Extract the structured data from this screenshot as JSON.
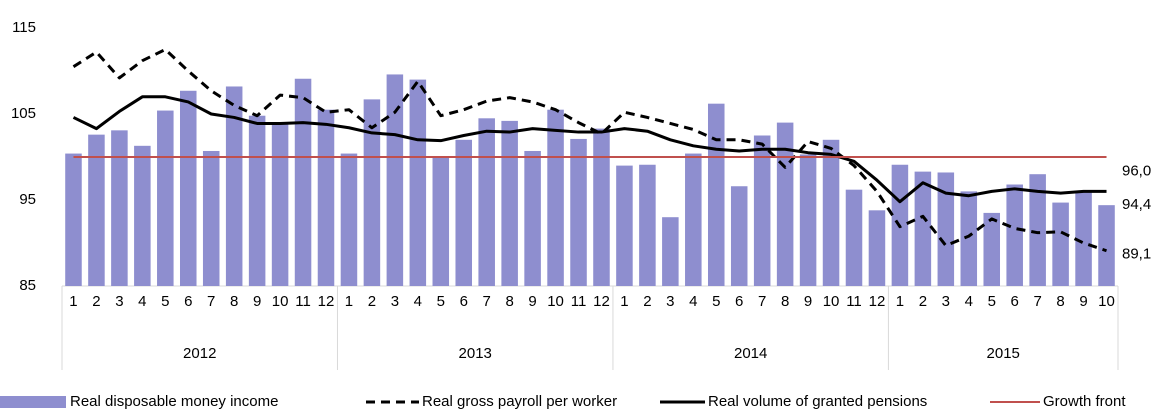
{
  "chart_data": {
    "type": "bar_line",
    "categories": [
      "1",
      "2",
      "3",
      "4",
      "5",
      "6",
      "7",
      "8",
      "9",
      "10",
      "11",
      "12",
      "1",
      "2",
      "3",
      "4",
      "5",
      "6",
      "7",
      "8",
      "9",
      "10",
      "11",
      "12",
      "1",
      "2",
      "3",
      "4",
      "5",
      "6",
      "7",
      "8",
      "9",
      "10",
      "11",
      "12",
      "1",
      "2",
      "3",
      "4",
      "5",
      "6",
      "7",
      "8",
      "9",
      "10"
    ],
    "groups": [
      {
        "label": "2012",
        "size": 12
      },
      {
        "label": "2013",
        "size": 12
      },
      {
        "label": "2014",
        "size": 12
      },
      {
        "label": "2015",
        "size": 10
      }
    ],
    "ylim": [
      85,
      115
    ],
    "yticks": [
      85,
      95,
      105,
      115
    ],
    "grid": false,
    "series": [
      {
        "name": "Real disposable money income",
        "kind": "bar",
        "color": "#8e8ecf",
        "values": [
          100.4,
          102.6,
          103.1,
          101.3,
          105.4,
          107.7,
          100.7,
          108.2,
          104.8,
          104.0,
          109.1,
          105.5,
          100.4,
          106.7,
          109.6,
          109.0,
          100.0,
          102.0,
          104.5,
          104.2,
          100.7,
          105.5,
          102.1,
          103.3,
          99.0,
          99.1,
          93.0,
          100.4,
          106.2,
          96.6,
          102.5,
          104.0,
          100.3,
          102.0,
          96.2,
          93.8,
          99.1,
          98.3,
          98.2,
          96.0,
          93.5,
          96.8,
          98.0,
          94.7,
          96.0,
          94.4
        ],
        "end_label": "94,4"
      },
      {
        "name": "Real gross payroll per worker",
        "kind": "line",
        "dash": true,
        "color": "#000000",
        "values": [
          110.5,
          112.2,
          109.2,
          111.2,
          112.5,
          110.0,
          107.7,
          106.0,
          104.8,
          107.2,
          106.9,
          105.2,
          105.5,
          103.4,
          105.2,
          108.8,
          104.8,
          105.5,
          106.5,
          106.9,
          106.4,
          105.5,
          104.0,
          102.7,
          105.2,
          104.6,
          103.9,
          103.2,
          102.0,
          102.0,
          101.5,
          98.8,
          101.8,
          101.0,
          99.0,
          96.0,
          91.9,
          93.1,
          89.7,
          90.8,
          92.8,
          91.7,
          91.2,
          91.3,
          90.0,
          89.1
        ],
        "end_label": "89,1"
      },
      {
        "name": "Real volume of granted pensions",
        "kind": "line",
        "dash": false,
        "color": "#000000",
        "values": [
          104.6,
          103.3,
          105.3,
          107.0,
          107.0,
          106.4,
          105.0,
          104.6,
          103.9,
          103.9,
          104.0,
          103.8,
          103.4,
          102.8,
          102.6,
          102.0,
          101.9,
          102.5,
          103.0,
          102.9,
          103.3,
          103.1,
          102.9,
          102.9,
          103.3,
          103.0,
          102.0,
          101.3,
          100.9,
          100.7,
          100.9,
          100.9,
          100.5,
          100.3,
          99.5,
          97.3,
          94.8,
          97.0,
          95.8,
          95.5,
          96.0,
          96.3,
          96.0,
          95.8,
          96.0,
          96.0
        ],
        "end_label": "96,0"
      },
      {
        "name": "Growth front",
        "kind": "line",
        "dash": false,
        "color": "#c0504d",
        "values": [
          100,
          100,
          100,
          100,
          100,
          100,
          100,
          100,
          100,
          100,
          100,
          100,
          100,
          100,
          100,
          100,
          100,
          100,
          100,
          100,
          100,
          100,
          100,
          100,
          100,
          100,
          100,
          100,
          100,
          100,
          100,
          100,
          100,
          100,
          100,
          100,
          100,
          100,
          100,
          100,
          100,
          100,
          100,
          100,
          100,
          100
        ]
      }
    ]
  }
}
